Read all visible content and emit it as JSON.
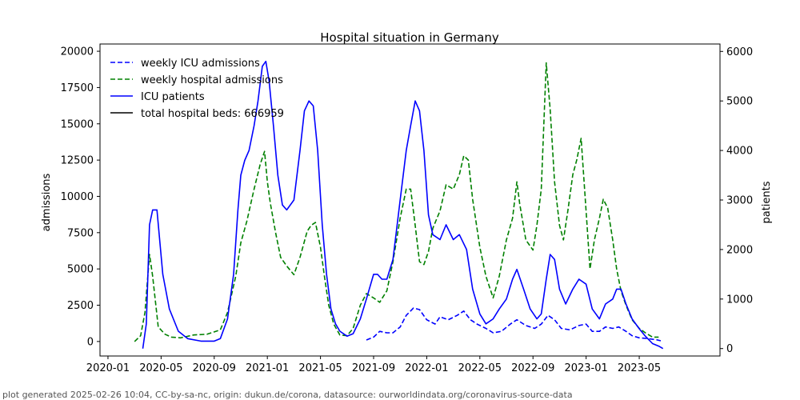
{
  "chart_data": {
    "type": "line",
    "title": "Hospital situation in Germany",
    "ylabel_left": "admissions",
    "ylabel_right": "patients",
    "ylim_left": [
      -1000,
      20500
    ],
    "ylim_right": [
      -150,
      6150
    ],
    "x_ticks": [
      "2020-01",
      "2020-05",
      "2020-09",
      "2021-01",
      "2021-05",
      "2021-09",
      "2022-01",
      "2022-05",
      "2022-09",
      "2023-01",
      "2023-05"
    ],
    "x_tick_labels": [
      "2020-01",
      "2020-05",
      "2020-09",
      "2021-01",
      "2021-05",
      "2021-09",
      "2022-01",
      "2022-05",
      "2022-09",
      "2023-01",
      "2023-05"
    ],
    "y_left_ticks": [
      0,
      2500,
      5000,
      7500,
      10000,
      12500,
      15000,
      17500,
      20000
    ],
    "y_left_tick_labels": [
      "0",
      "2500",
      "5000",
      "7500",
      "10000",
      "12500",
      "15000",
      "17500",
      "20000"
    ],
    "y_right_ticks": [
      0,
      1000,
      2000,
      3000,
      4000,
      5000,
      6000
    ],
    "y_right_tick_labels": [
      "0",
      "1000",
      "2000",
      "3000",
      "4000",
      "5000",
      "6000"
    ],
    "legend": {
      "placement": "top-left",
      "entries": [
        {
          "label": "weekly ICU admissions",
          "color": "#0000ff",
          "style": "dashed"
        },
        {
          "label": "weekly hospital admissions",
          "color": "#008000",
          "style": "dashed"
        },
        {
          "label": "ICU patients",
          "color": "#0000ff",
          "style": "solid"
        },
        {
          "label": "total hospital beds: 666959",
          "color": "#000000",
          "style": "solid"
        }
      ]
    },
    "series": [
      {
        "name": "weekly hospital admissions",
        "axis": "left",
        "color": "#008000",
        "style": "dashed",
        "x": [
          "2020-03-01",
          "2020-03-15",
          "2020-03-25",
          "2020-04-05",
          "2020-04-12",
          "2020-04-25",
          "2020-05-10",
          "2020-05-25",
          "2020-06-15",
          "2020-07-15",
          "2020-08-15",
          "2020-09-15",
          "2020-10-01",
          "2020-10-20",
          "2020-11-01",
          "2020-11-15",
          "2020-12-01",
          "2020-12-15",
          "2020-12-25",
          "2021-01-01",
          "2021-01-08",
          "2021-01-20",
          "2021-02-01",
          "2021-02-15",
          "2021-03-01",
          "2021-03-15",
          "2021-04-01",
          "2021-04-10",
          "2021-04-20",
          "2021-05-01",
          "2021-05-10",
          "2021-05-20",
          "2021-06-01",
          "2021-06-15",
          "2021-07-01",
          "2021-07-15",
          "2021-08-01",
          "2021-08-15",
          "2021-09-01",
          "2021-09-15",
          "2021-10-01",
          "2021-10-15",
          "2021-11-01",
          "2021-11-15",
          "2021-11-25",
          "2021-12-05",
          "2021-12-15",
          "2021-12-25",
          "2022-01-05",
          "2022-01-15",
          "2022-02-01",
          "2022-02-15",
          "2022-03-01",
          "2022-03-15",
          "2022-03-25",
          "2022-04-05",
          "2022-04-15",
          "2022-05-01",
          "2022-05-15",
          "2022-06-01",
          "2022-06-15",
          "2022-07-01",
          "2022-07-15",
          "2022-07-25",
          "2022-08-01",
          "2022-08-15",
          "2022-09-01",
          "2022-09-10",
          "2022-09-20",
          "2022-10-01",
          "2022-10-10",
          "2022-10-20",
          "2022-11-01",
          "2022-11-10",
          "2022-11-20",
          "2022-12-01",
          "2022-12-10",
          "2022-12-20",
          "2023-01-01",
          "2023-01-10",
          "2023-01-20",
          "2023-02-01",
          "2023-02-10",
          "2023-02-20",
          "2023-03-01",
          "2023-03-10",
          "2023-03-20",
          "2023-04-01",
          "2023-04-15",
          "2023-05-01",
          "2023-05-15",
          "2023-06-01",
          "2023-06-15"
        ],
        "values": [
          0,
          400,
          2000,
          6000,
          4500,
          1000,
          500,
          300,
          250,
          450,
          500,
          800,
          2000,
          4500,
          6800,
          8300,
          10500,
          12200,
          13100,
          11000,
          9500,
          7500,
          5800,
          5200,
          4600,
          5800,
          7600,
          8000,
          8200,
          6500,
          4500,
          2500,
          1200,
          450,
          400,
          900,
          2500,
          3300,
          3000,
          2700,
          3500,
          5500,
          8500,
          10500,
          10500,
          8000,
          5500,
          5300,
          6200,
          7800,
          9000,
          10800,
          10500,
          11500,
          12800,
          12500,
          9800,
          6500,
          4500,
          3000,
          4500,
          7000,
          8500,
          11000,
          9500,
          7000,
          6300,
          8000,
          10500,
          19200,
          16000,
          11000,
          8000,
          7000,
          9000,
          11500,
          12500,
          14000,
          9000,
          5000,
          7000,
          8500,
          9800,
          9200,
          7000,
          5000,
          3500,
          2500,
          1500,
          900,
          600,
          300,
          300
        ]
      },
      {
        "name": "weekly ICU admissions",
        "axis": "left",
        "color": "#0000ff",
        "style": "dashed",
        "x": [
          "2021-08-15",
          "2021-09-01",
          "2021-09-15",
          "2021-10-01",
          "2021-10-15",
          "2021-11-01",
          "2021-11-15",
          "2021-12-01",
          "2021-12-15",
          "2022-01-01",
          "2022-01-20",
          "2022-02-01",
          "2022-02-20",
          "2022-03-10",
          "2022-03-25",
          "2022-04-10",
          "2022-04-25",
          "2022-05-15",
          "2022-06-01",
          "2022-06-20",
          "2022-07-10",
          "2022-07-25",
          "2022-08-15",
          "2022-09-05",
          "2022-09-20",
          "2022-10-05",
          "2022-10-20",
          "2022-11-05",
          "2022-11-25",
          "2022-12-15",
          "2023-01-01",
          "2023-01-15",
          "2023-02-01",
          "2023-02-15",
          "2023-03-01",
          "2023-03-15",
          "2023-04-01",
          "2023-04-15",
          "2023-05-01",
          "2023-05-20",
          "2023-06-10",
          "2023-06-20"
        ],
        "values": [
          100,
          300,
          700,
          600,
          600,
          1000,
          1800,
          2300,
          2200,
          1500,
          1200,
          1700,
          1500,
          1800,
          2100,
          1500,
          1200,
          900,
          600,
          700,
          1200,
          1500,
          1100,
          900,
          1200,
          1800,
          1500,
          900,
          800,
          1100,
          1200,
          700,
          700,
          1000,
          900,
          1000,
          700,
          400,
          250,
          200,
          120,
          50
        ]
      },
      {
        "name": "ICU patients",
        "axis": "right",
        "color": "#0000ff",
        "style": "solid",
        "x": [
          "2020-03-20",
          "2020-03-28",
          "2020-04-05",
          "2020-04-12",
          "2020-04-22",
          "2020-05-05",
          "2020-05-20",
          "2020-06-10",
          "2020-07-01",
          "2020-08-01",
          "2020-09-01",
          "2020-09-15",
          "2020-10-01",
          "2020-10-15",
          "2020-10-25",
          "2020-11-01",
          "2020-11-10",
          "2020-11-20",
          "2020-12-01",
          "2020-12-10",
          "2020-12-20",
          "2020-12-28",
          "2021-01-05",
          "2021-01-15",
          "2021-01-25",
          "2021-02-05",
          "2021-02-15",
          "2021-03-01",
          "2021-03-15",
          "2021-03-25",
          "2021-04-05",
          "2021-04-15",
          "2021-04-25",
          "2021-05-05",
          "2021-05-15",
          "2021-05-25",
          "2021-06-05",
          "2021-06-15",
          "2021-07-01",
          "2021-07-15",
          "2021-08-01",
          "2021-08-15",
          "2021-09-01",
          "2021-09-10",
          "2021-09-20",
          "2021-10-01",
          "2021-10-15",
          "2021-11-01",
          "2021-11-15",
          "2021-11-25",
          "2021-12-05",
          "2021-12-15",
          "2021-12-25",
          "2022-01-05",
          "2022-01-15",
          "2022-02-01",
          "2022-02-15",
          "2022-03-01",
          "2022-03-15",
          "2022-04-01",
          "2022-04-15",
          "2022-05-01",
          "2022-05-15",
          "2022-06-01",
          "2022-06-15",
          "2022-07-01",
          "2022-07-15",
          "2022-07-25",
          "2022-08-10",
          "2022-08-25",
          "2022-09-10",
          "2022-09-20",
          "2022-10-01",
          "2022-10-10",
          "2022-10-20",
          "2022-11-01",
          "2022-11-15",
          "2022-12-01",
          "2022-12-15",
          "2023-01-01",
          "2023-01-15",
          "2023-02-01",
          "2023-02-15",
          "2023-03-01",
          "2023-03-10",
          "2023-03-20",
          "2023-04-01",
          "2023-04-15",
          "2023-05-01",
          "2023-05-15",
          "2023-06-01",
          "2023-06-15",
          "2023-06-25"
        ],
        "values": [
          0,
          500,
          2500,
          2800,
          2800,
          1500,
          800,
          350,
          200,
          150,
          150,
          200,
          600,
          1500,
          2800,
          3500,
          3800,
          4000,
          4500,
          5000,
          5700,
          5800,
          5400,
          4500,
          3500,
          2900,
          2800,
          3000,
          4000,
          4800,
          5000,
          4900,
          4000,
          2500,
          1500,
          800,
          500,
          350,
          250,
          300,
          600,
          1000,
          1500,
          1500,
          1400,
          1400,
          1800,
          3000,
          4000,
          4500,
          5000,
          4800,
          4000,
          2700,
          2300,
          2200,
          2500,
          2200,
          2300,
          2000,
          1200,
          700,
          500,
          600,
          800,
          1000,
          1400,
          1600,
          1200,
          800,
          600,
          700,
          1400,
          1900,
          1800,
          1200,
          900,
          1200,
          1400,
          1300,
          800,
          600,
          900,
          1000,
          1200,
          1200,
          900,
          600,
          400,
          250,
          100,
          50,
          0
        ]
      }
    ]
  },
  "footer": "plot generated 2025-02-26 10:04, CC-by-sa-nc, origin: dukun.de/corona, datasource: ourworldindata.org/coronavirus-source-data"
}
